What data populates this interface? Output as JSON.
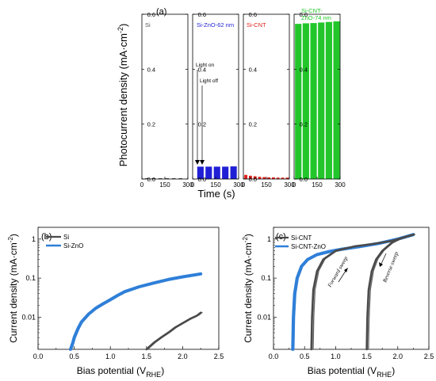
{
  "panel_a": {
    "label": "(a)",
    "ylabel_main": "Photocurrent density (mA",
    "ylabel_mid": "·cm",
    "ylabel_sup": "-2",
    "ylabel_close": ")",
    "xlabel": "Time (s)",
    "yticks": [
      "0.0",
      "0.2",
      "0.4",
      "0.6"
    ],
    "xticks": [
      "0",
      "150",
      "300"
    ],
    "annotation_light_on": "Light on",
    "annotation_light_off": "Light off",
    "colors": {
      "Si": "#555555",
      "Si-ZnO-62 nm": "#1f1fd6",
      "Si-CNT": "#e0201a",
      "Si-CNT-ZnO-74 nm": "#22c62a"
    }
  },
  "panel_b": {
    "label": "(b)",
    "ylabel_main": "Current density (mA",
    "ylabel_mid": "·cm",
    "ylabel_sup": "-2",
    "ylabel_close": ")",
    "xlabel_main": "Bias potential (V",
    "xlabel_sub": "RHE",
    "xlabel_close": ")",
    "yticks": [
      "0.01",
      "0.1",
      "1"
    ],
    "xticks": [
      "0.0",
      "0.5",
      "1.0",
      "1.5",
      "2.0",
      "2.5"
    ],
    "legend": [
      "Si",
      "Si-ZnO"
    ],
    "colors": {
      "Si": "#4a4a4a",
      "Si-ZnO": "#2f7fd8"
    }
  },
  "panel_c": {
    "label": "(c)",
    "ylabel_main": "Current density (mA",
    "ylabel_mid": "·cm",
    "ylabel_sup": "-2",
    "ylabel_close": ")",
    "xlabel_main": "Bias potential (V",
    "xlabel_sub": "RHE",
    "xlabel_close": ")",
    "yticks": [
      "0.01",
      "0.1",
      "1"
    ],
    "xticks": [
      "0.0",
      "0.5",
      "1.0",
      "1.5",
      "2.0",
      "2.5"
    ],
    "legend": [
      "Si-CNT",
      "Si-CNT-ZnO"
    ],
    "annotation_forward": "Forward sweep",
    "annotation_reverse": "Reverse sweep",
    "colors": {
      "Si-CNT": "#4a4a4a",
      "Si-CNT-ZnO": "#2f7fd8"
    }
  },
  "chart_data": [
    {
      "type": "bar",
      "title": "(a)",
      "xlabel": "Time (s)",
      "ylabel": "Photocurrent density (mA·cm-2)",
      "ylim": [
        0,
        0.6
      ],
      "xlim": [
        0,
        300
      ],
      "subplots": [
        {
          "name": "Si",
          "pulses": [
            {
              "start": 20,
              "end": 44,
              "value": 0.003
            },
            {
              "start": 64,
              "end": 88,
              "value": 0.003
            },
            {
              "start": 108,
              "end": 132,
              "value": 0.003
            },
            {
              "start": 152,
              "end": 176,
              "value": 0.003
            },
            {
              "start": 196,
              "end": 220,
              "value": 0.003
            },
            {
              "start": 240,
              "end": 264,
              "value": 0.003
            }
          ]
        },
        {
          "name": "Si-ZnO-62 nm",
          "pulses": [
            {
              "start": 30,
              "end": 72,
              "value": 0.045
            },
            {
              "start": 84,
              "end": 126,
              "value": 0.045
            },
            {
              "start": 138,
              "end": 180,
              "value": 0.045
            },
            {
              "start": 192,
              "end": 234,
              "value": 0.045
            },
            {
              "start": 246,
              "end": 288,
              "value": 0.046
            }
          ]
        },
        {
          "name": "Si-CNT",
          "pulses": [
            {
              "start": 6,
              "end": 26,
              "value": 0.015
            },
            {
              "start": 36,
              "end": 56,
              "value": 0.012
            },
            {
              "start": 66,
              "end": 86,
              "value": 0.01
            },
            {
              "start": 96,
              "end": 116,
              "value": 0.008
            },
            {
              "start": 126,
              "end": 146,
              "value": 0.007
            },
            {
              "start": 156,
              "end": 176,
              "value": 0.006
            },
            {
              "start": 186,
              "end": 206,
              "value": 0.006
            },
            {
              "start": 216,
              "end": 236,
              "value": 0.005
            },
            {
              "start": 246,
              "end": 266,
              "value": 0.005
            },
            {
              "start": 276,
              "end": 296,
              "value": 0.005
            }
          ]
        },
        {
          "name": "Si-CNT-ZnO-74 nm",
          "pulses": [
            {
              "start": 6,
              "end": 48,
              "value": 0.565
            },
            {
              "start": 56,
              "end": 98,
              "value": 0.567
            },
            {
              "start": 106,
              "end": 148,
              "value": 0.568
            },
            {
              "start": 156,
              "end": 198,
              "value": 0.57
            },
            {
              "start": 206,
              "end": 248,
              "value": 0.572
            },
            {
              "start": 256,
              "end": 298,
              "value": 0.574
            }
          ]
        }
      ]
    },
    {
      "type": "line",
      "title": "(b)",
      "xlabel": "Bias potential (VRHE)",
      "ylabel": "Current density (mA·cm-2)",
      "xlim": [
        0,
        2.5
      ],
      "ylim": [
        0.0015,
        2
      ],
      "yscale": "log",
      "series": [
        {
          "name": "Si-ZnO",
          "x": [
            0.45,
            0.48,
            0.5,
            0.55,
            0.6,
            0.7,
            0.8,
            0.9,
            1.0,
            1.1,
            1.2,
            1.4,
            1.6,
            1.8,
            2.0,
            2.25
          ],
          "y": [
            0.0015,
            0.0022,
            0.003,
            0.005,
            0.0075,
            0.012,
            0.017,
            0.022,
            0.028,
            0.036,
            0.045,
            0.06,
            0.075,
            0.092,
            0.108,
            0.128
          ]
        },
        {
          "name": "Si",
          "x": [
            1.5,
            1.6,
            1.7,
            1.8,
            1.9,
            2.0,
            2.1,
            2.2,
            2.25
          ],
          "y": [
            0.0015,
            0.0022,
            0.003,
            0.004,
            0.0055,
            0.007,
            0.009,
            0.011,
            0.013
          ]
        }
      ]
    },
    {
      "type": "line",
      "title": "(c)",
      "xlabel": "Bias potential (VRHE)",
      "ylabel": "Current density (mA·cm-2)",
      "xlim": [
        0,
        2.5
      ],
      "ylim": [
        0.0015,
        2
      ],
      "yscale": "log",
      "series": [
        {
          "name": "Si-CNT-ZnO",
          "x": [
            0.31,
            0.32,
            0.34,
            0.38,
            0.45,
            0.55,
            0.7,
            0.9,
            1.1,
            1.4,
            1.7,
            2.0,
            2.25
          ],
          "y": [
            0.0015,
            0.01,
            0.04,
            0.1,
            0.2,
            0.3,
            0.4,
            0.48,
            0.55,
            0.65,
            0.78,
            1.0,
            1.3
          ]
        },
        {
          "name": "Si-CNT",
          "x": [
            0.61,
            0.62,
            0.64,
            0.7,
            0.8,
            1.0,
            1.3,
            1.6,
            1.9,
            2.1,
            2.25
          ],
          "y": [
            0.0015,
            0.01,
            0.05,
            0.15,
            0.3,
            0.5,
            0.65,
            0.75,
            0.9,
            1.1,
            1.3
          ]
        },
        {
          "name": "Si-CNT",
          "x": [
            1.5,
            1.51,
            1.53,
            1.58,
            1.65,
            1.75,
            1.9,
            2.05,
            2.25
          ],
          "y": [
            0.0015,
            0.01,
            0.05,
            0.15,
            0.3,
            0.5,
            0.8,
            1.05,
            1.3
          ]
        }
      ]
    }
  ]
}
